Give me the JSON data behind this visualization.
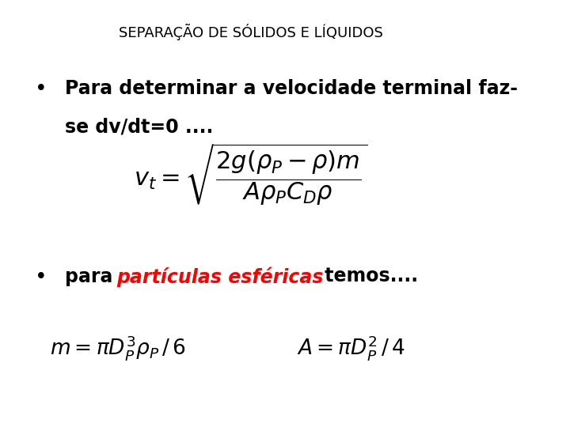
{
  "title": "SEPARAÇÃO DE SÓLIDOS E LÍQUIDOS",
  "title_fontsize": 13,
  "title_color": "#000000",
  "background_color": "#ffffff",
  "bullet1_line1": "Para determinar a velocidade terminal faz-",
  "bullet1_line2": "se dv/dt=0 ....",
  "bullet2_black1": "para ",
  "bullet2_red": "partículas esféricas",
  "bullet2_black2": " temos....",
  "formula1": "$v_t = \\sqrt{\\dfrac{2g(\\rho_P - \\rho)m}{A\\rho_P C_D \\rho}}$",
  "formula2a": "$m = \\pi D_P^3 \\rho_P \\, / \\, 6$",
  "formula2b": "$A = \\pi D_P^2 \\, / \\, 4$",
  "text_fontsize": 17,
  "formula1_fontsize": 22,
  "formula2_fontsize": 19
}
